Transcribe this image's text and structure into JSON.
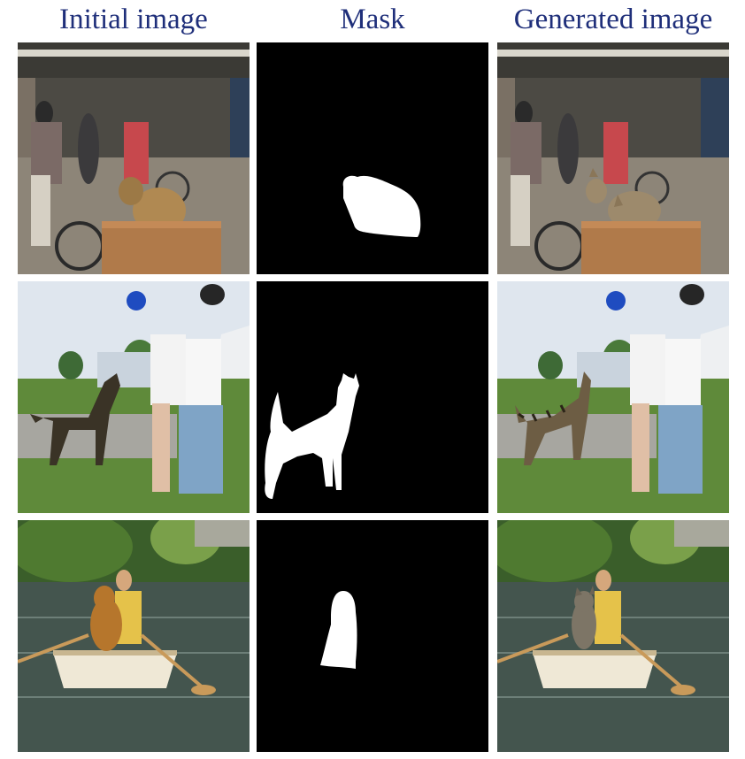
{
  "headers": {
    "initial": "Initial image",
    "mask": "Mask",
    "generated": "Generated image"
  },
  "colors": {
    "header_text": "#1f2f7a",
    "mask_background": "#000000",
    "mask_foreground": "#ffffff"
  },
  "rows": [
    {
      "initial": "street-scene-dog-in-cart-photo",
      "mask": "dog-mask",
      "generated": "street-scene-cat-in-cart-photo"
    },
    {
      "initial": "lawn-scene-standing-dog-photo",
      "mask": "dog-silhouette-mask",
      "generated": "lawn-scene-standing-cat-photo"
    },
    {
      "initial": "rowboat-scene-dog-photo",
      "mask": "dog-mask",
      "generated": "rowboat-scene-cat-photo"
    }
  ]
}
